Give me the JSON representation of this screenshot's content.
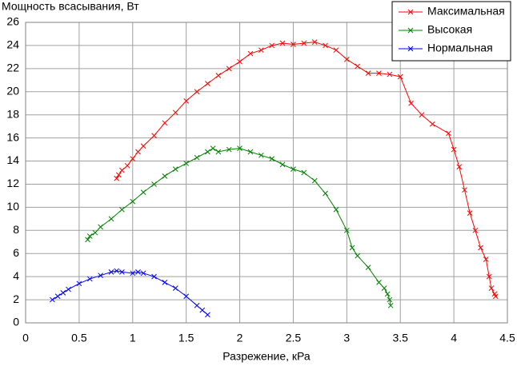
{
  "chart_data": {
    "type": "line",
    "y_label": "Мощность всасывания, Вт",
    "x_label": "Разрежение, кРа",
    "xlim": [
      0,
      4.5
    ],
    "xticks": [
      0,
      0.5,
      1,
      1.5,
      2,
      2.5,
      3,
      3.5,
      4,
      4.5
    ],
    "ylim": [
      0,
      26
    ],
    "yticks": [
      0,
      2,
      4,
      6,
      8,
      10,
      12,
      14,
      16,
      18,
      20,
      22,
      24,
      26
    ],
    "grid": true,
    "legend": "top-right",
    "series": [
      {
        "name": "Максимальная",
        "color": "#ff0000",
        "x": [
          0.85,
          0.87,
          0.9,
          0.95,
          1.0,
          1.05,
          1.1,
          1.2,
          1.3,
          1.4,
          1.5,
          1.6,
          1.7,
          1.8,
          1.9,
          2.0,
          2.1,
          2.2,
          2.3,
          2.4,
          2.5,
          2.6,
          2.7,
          2.8,
          2.9,
          3.0,
          3.1,
          3.2,
          3.3,
          3.4,
          3.5,
          3.6,
          3.7,
          3.8,
          3.95,
          4.0,
          4.05,
          4.1,
          4.15,
          4.2,
          4.25,
          4.3,
          4.33,
          4.35,
          4.38,
          4.39
        ],
        "values": [
          12.5,
          12.8,
          13.2,
          13.6,
          14.2,
          14.8,
          15.3,
          16.2,
          17.3,
          18.2,
          19.2,
          20.0,
          20.7,
          21.4,
          22.0,
          22.6,
          23.3,
          23.6,
          24.0,
          24.2,
          24.1,
          24.2,
          24.3,
          24.0,
          23.6,
          22.8,
          22.2,
          21.6,
          21.6,
          21.5,
          21.3,
          19.0,
          18.0,
          17.2,
          16.4,
          15.0,
          13.5,
          11.5,
          9.5,
          8.0,
          6.5,
          5.5,
          4.0,
          3.0,
          2.5,
          2.3
        ]
      },
      {
        "name": "Высокая",
        "color": "#008000",
        "x": [
          0.58,
          0.6,
          0.65,
          0.7,
          0.8,
          0.9,
          1.0,
          1.1,
          1.2,
          1.3,
          1.4,
          1.5,
          1.6,
          1.7,
          1.75,
          1.8,
          1.9,
          2.0,
          2.1,
          2.2,
          2.3,
          2.4,
          2.5,
          2.6,
          2.7,
          2.8,
          2.9,
          3.0,
          3.05,
          3.1,
          3.2,
          3.3,
          3.35,
          3.38,
          3.4,
          3.41
        ],
        "values": [
          7.2,
          7.5,
          7.8,
          8.3,
          9.0,
          9.8,
          10.5,
          11.3,
          12.0,
          12.7,
          13.3,
          13.8,
          14.3,
          14.8,
          15.1,
          14.8,
          15.0,
          15.1,
          14.8,
          14.5,
          14.2,
          13.7,
          13.3,
          13.0,
          12.3,
          11.2,
          9.8,
          8.0,
          6.5,
          5.8,
          4.8,
          3.5,
          3.0,
          2.5,
          2.0,
          1.5
        ]
      },
      {
        "name": "Нормальная",
        "color": "#0000ff",
        "x": [
          0.25,
          0.3,
          0.35,
          0.4,
          0.5,
          0.6,
          0.7,
          0.8,
          0.85,
          0.9,
          1.0,
          1.05,
          1.1,
          1.2,
          1.3,
          1.4,
          1.5,
          1.6,
          1.65,
          1.7
        ],
        "values": [
          2.0,
          2.3,
          2.6,
          2.9,
          3.4,
          3.8,
          4.1,
          4.4,
          4.5,
          4.4,
          4.3,
          4.4,
          4.3,
          4.0,
          3.5,
          3.0,
          2.3,
          1.5,
          1.1,
          0.7
        ]
      }
    ]
  }
}
